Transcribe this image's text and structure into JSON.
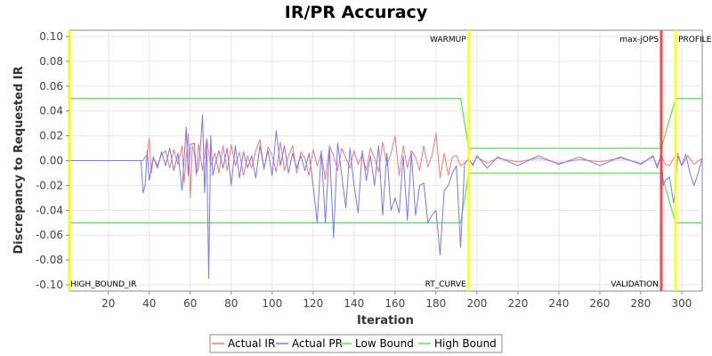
{
  "chart_data": {
    "type": "line",
    "title": "IR/PR Accuracy",
    "xlabel": "Iteration",
    "ylabel": "Discrepancy to Requested IR",
    "xlim": [
      1,
      310
    ],
    "ylim": [
      -0.105,
      0.105
    ],
    "x_ticks": [
      "20",
      "40",
      "60",
      "80",
      "100",
      "120",
      "140",
      "160",
      "180",
      "200",
      "220",
      "240",
      "260",
      "280",
      "300"
    ],
    "x_tick_values": [
      20,
      40,
      60,
      80,
      100,
      120,
      140,
      160,
      180,
      200,
      220,
      240,
      260,
      280,
      300
    ],
    "y_ticks": [
      "0.10",
      "0.08",
      "0.06",
      "0.04",
      "0.02",
      "0.00",
      "-0.02",
      "-0.04",
      "-0.06",
      "-0.08",
      "-0.10"
    ],
    "y_tick_values": [
      0.1,
      0.08,
      0.06,
      0.04,
      0.02,
      0.0,
      -0.02,
      -0.04,
      -0.06,
      -0.08,
      -0.1
    ],
    "grid": true,
    "legend_position": "bottom",
    "markers": [
      {
        "label": "WARMUP",
        "x": 196,
        "color": "#ffff00",
        "label_position": "top-left"
      },
      {
        "label": "RT_CURVE",
        "x": 196,
        "color": "#ffff00",
        "label_position": "bottom-left"
      },
      {
        "label": "max-jOPS",
        "x": 290,
        "color": "#ff3333",
        "label_position": "top-left"
      },
      {
        "label": "VALIDATION",
        "x": 290,
        "color": "#ff3333",
        "label_position": "bottom-left"
      },
      {
        "label": "PROFILE",
        "x": 297,
        "color": "#ffff00",
        "label_position": "top-right"
      },
      {
        "label": "HIGH_BOUND_IR",
        "x": 1,
        "color": "#ffff00",
        "label_position": "bottom-right"
      }
    ],
    "series": [
      {
        "name": "Actual IR",
        "color": "#ff7777",
        "points": [
          [
            1,
            0
          ],
          [
            37,
            0
          ],
          [
            38,
            0.003
          ],
          [
            39,
            0.004
          ],
          [
            40,
            0.018
          ],
          [
            41,
            -0.01
          ],
          [
            42,
            0.002
          ],
          [
            44,
            -0.004
          ],
          [
            46,
            0.005
          ],
          [
            48,
            0.008
          ],
          [
            50,
            -0.006
          ],
          [
            52,
            0.009
          ],
          [
            54,
            -0.003
          ],
          [
            56,
            0.012
          ],
          [
            57,
            -0.018
          ],
          [
            58,
            0.002
          ],
          [
            59,
            0.022
          ],
          [
            60,
            -0.03
          ],
          [
            61,
            0.012
          ],
          [
            62,
            0.006
          ],
          [
            63,
            -0.012
          ],
          [
            64,
            0.014
          ],
          [
            66,
            -0.008
          ],
          [
            67,
            0.005
          ],
          [
            68,
            0.018
          ],
          [
            70,
            -0.004
          ],
          [
            72,
            0.006
          ],
          [
            74,
            -0.01
          ],
          [
            76,
            0.012
          ],
          [
            78,
            -0.008
          ],
          [
            80,
            0.013
          ],
          [
            82,
            -0.004
          ],
          [
            84,
            0.007
          ],
          [
            86,
            -0.012
          ],
          [
            88,
            0.004
          ],
          [
            90,
            -0.006
          ],
          [
            92,
            0.008
          ],
          [
            94,
            0.017
          ],
          [
            96,
            -0.007
          ],
          [
            98,
            0.011
          ],
          [
            100,
            0.004
          ],
          [
            102,
            -0.009
          ],
          [
            104,
            0.015
          ],
          [
            106,
            -0.008
          ],
          [
            108,
            0.004
          ],
          [
            110,
            0.012
          ],
          [
            112,
            -0.01
          ],
          [
            114,
            0.007
          ],
          [
            116,
            0.002
          ],
          [
            118,
            -0.012
          ],
          [
            120,
            0.009
          ],
          [
            122,
            -0.004
          ],
          [
            124,
            0.006
          ],
          [
            126,
            -0.015
          ],
          [
            128,
            0.012
          ],
          [
            130,
            0.004
          ],
          [
            132,
            -0.008
          ],
          [
            134,
            0.01
          ],
          [
            136,
            0.002
          ],
          [
            138,
            -0.006
          ],
          [
            140,
            0.008
          ],
          [
            142,
            -0.003
          ],
          [
            144,
            0.005
          ],
          [
            146,
            -0.008
          ],
          [
            148,
            0.01
          ],
          [
            150,
            0.002
          ],
          [
            152,
            -0.009
          ],
          [
            154,
            0.015
          ],
          [
            156,
            -0.004
          ],
          [
            158,
            0.006
          ],
          [
            160,
            0.02
          ],
          [
            162,
            -0.012
          ],
          [
            164,
            0.012
          ],
          [
            166,
            -0.006
          ],
          [
            168,
            0.008
          ],
          [
            170,
            0.003
          ],
          [
            172,
            -0.008
          ],
          [
            174,
            0.012
          ],
          [
            176,
            -0.005
          ],
          [
            178,
            0.004
          ],
          [
            180,
            0.022
          ],
          [
            182,
            -0.014
          ],
          [
            184,
            0.006
          ],
          [
            186,
            -0.012
          ],
          [
            188,
            0.003
          ],
          [
            190,
            0.004
          ],
          [
            192,
            -0.004
          ],
          [
            194,
            -0.002
          ],
          [
            196,
            0.001
          ],
          [
            198,
            -0.003
          ],
          [
            200,
            0.003
          ],
          [
            205,
            -0.002
          ],
          [
            210,
            0.002
          ],
          [
            220,
            -0.001
          ],
          [
            230,
            0.002
          ],
          [
            240,
            -0.002
          ],
          [
            250,
            0.001
          ],
          [
            260,
            -0.001
          ],
          [
            270,
            0.002
          ],
          [
            280,
            -0.002
          ],
          [
            286,
            0.003
          ],
          [
            288,
            -0.004
          ],
          [
            290,
            0.004
          ],
          [
            292,
            -0.003
          ],
          [
            294,
            -0.004
          ],
          [
            296,
            0.002
          ],
          [
            298,
            0.006
          ],
          [
            300,
            -0.004
          ],
          [
            303,
            0.004
          ],
          [
            306,
            -0.003
          ],
          [
            310,
            0.002
          ]
        ]
      },
      {
        "name": "Actual PR",
        "color": "#7777ff",
        "points": [
          [
            1,
            0
          ],
          [
            36,
            0
          ],
          [
            37,
            -0.026
          ],
          [
            38,
            -0.02
          ],
          [
            39,
            0.008
          ],
          [
            40,
            -0.016
          ],
          [
            42,
            0.003
          ],
          [
            44,
            -0.006
          ],
          [
            46,
            0.007
          ],
          [
            48,
            -0.004
          ],
          [
            50,
            0.01
          ],
          [
            52,
            -0.008
          ],
          [
            54,
            0.006
          ],
          [
            56,
            -0.024
          ],
          [
            58,
            0.027
          ],
          [
            59,
            -0.012
          ],
          [
            60,
            0.013
          ],
          [
            62,
            0.014
          ],
          [
            63,
            -0.01
          ],
          [
            64,
            -0.006
          ],
          [
            65,
            0.012
          ],
          [
            66,
            0.037
          ],
          [
            67,
            -0.026
          ],
          [
            68,
            0.016
          ],
          [
            69,
            -0.095
          ],
          [
            70,
            0.02
          ],
          [
            71,
            -0.012
          ],
          [
            72,
            -0.004
          ],
          [
            74,
            0.008
          ],
          [
            76,
            -0.006
          ],
          [
            78,
            0.01
          ],
          [
            80,
            -0.02
          ],
          [
            82,
            0.012
          ],
          [
            84,
            -0.014
          ],
          [
            86,
            0.007
          ],
          [
            88,
            -0.006
          ],
          [
            90,
            0.004
          ],
          [
            92,
            -0.014
          ],
          [
            94,
            0.012
          ],
          [
            96,
            -0.006
          ],
          [
            98,
            0.008
          ],
          [
            100,
            -0.012
          ],
          [
            102,
            0.024
          ],
          [
            104,
            -0.004
          ],
          [
            106,
            0.012
          ],
          [
            108,
            -0.01
          ],
          [
            110,
            0.006
          ],
          [
            112,
            -0.006
          ],
          [
            114,
            0.004
          ],
          [
            116,
            -0.008
          ],
          [
            118,
            0.006
          ],
          [
            120,
            -0.02
          ],
          [
            122,
            -0.05
          ],
          [
            124,
            0.008
          ],
          [
            126,
            -0.05
          ],
          [
            128,
            0.01
          ],
          [
            130,
            -0.062
          ],
          [
            132,
            0.014
          ],
          [
            134,
            -0.012
          ],
          [
            136,
            -0.038
          ],
          [
            138,
            0.01
          ],
          [
            140,
            -0.02
          ],
          [
            142,
            -0.042
          ],
          [
            144,
            0.008
          ],
          [
            146,
            -0.016
          ],
          [
            148,
            0.004
          ],
          [
            150,
            -0.02
          ],
          [
            152,
            0.012
          ],
          [
            154,
            -0.044
          ],
          [
            156,
            0.006
          ],
          [
            158,
            -0.04
          ],
          [
            160,
            -0.03
          ],
          [
            162,
            -0.042
          ],
          [
            164,
            0.004
          ],
          [
            166,
            -0.048
          ],
          [
            168,
            0.006
          ],
          [
            170,
            -0.044
          ],
          [
            172,
            -0.02
          ],
          [
            174,
            -0.018
          ],
          [
            176,
            -0.05
          ],
          [
            178,
            -0.044
          ],
          [
            180,
            -0.04
          ],
          [
            182,
            -0.076
          ],
          [
            184,
            -0.024
          ],
          [
            186,
            -0.02
          ],
          [
            188,
            -0.01
          ],
          [
            190,
            -0.004
          ],
          [
            192,
            -0.07
          ],
          [
            194,
            -0.002
          ],
          [
            196,
            0.002
          ],
          [
            198,
            -0.004
          ],
          [
            200,
            0.004
          ],
          [
            205,
            -0.006
          ],
          [
            210,
            0.003
          ],
          [
            220,
            -0.004
          ],
          [
            230,
            0.004
          ],
          [
            240,
            -0.003
          ],
          [
            250,
            0.003
          ],
          [
            260,
            -0.004
          ],
          [
            270,
            0.003
          ],
          [
            280,
            -0.003
          ],
          [
            286,
            0.004
          ],
          [
            288,
            -0.006
          ],
          [
            290,
            0.005
          ],
          [
            291,
            -0.02
          ],
          [
            292,
            -0.016
          ],
          [
            294,
            -0.013
          ],
          [
            296,
            -0.034
          ],
          [
            297,
            -0.02
          ],
          [
            298,
            0.004
          ],
          [
            300,
            -0.004
          ],
          [
            302,
            0.005
          ],
          [
            304,
            -0.01
          ],
          [
            306,
            -0.02
          ],
          [
            308,
            -0.01
          ],
          [
            310,
            0.002
          ]
        ]
      },
      {
        "name": "Low Bound",
        "color": "#55ee55",
        "points": [
          [
            1,
            -0.05
          ],
          [
            192,
            -0.05
          ],
          [
            196,
            -0.01
          ],
          [
            290,
            -0.01
          ],
          [
            297,
            -0.05
          ],
          [
            310,
            -0.05
          ]
        ]
      },
      {
        "name": "High Bound",
        "color": "#55ee55",
        "points": [
          [
            1,
            0.05
          ],
          [
            192,
            0.05
          ],
          [
            196,
            0.01
          ],
          [
            290,
            0.01
          ],
          [
            297,
            0.05
          ],
          [
            310,
            0.05
          ]
        ]
      }
    ]
  }
}
